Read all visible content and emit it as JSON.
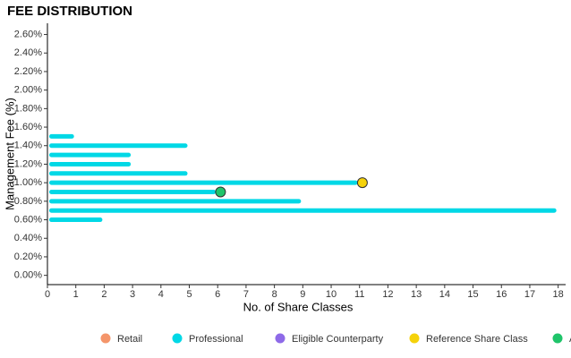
{
  "chart_data": {
    "type": "bar",
    "orientation": "horizontal",
    "title": "FEE DISTRIBUTION",
    "x_label": "No. of Share Classes",
    "y_label": "Management Fee (%)",
    "xlim": [
      0,
      18.2
    ],
    "xticks": [
      0,
      1,
      2,
      3,
      4,
      5,
      6,
      7,
      8,
      9,
      10,
      11,
      12,
      13,
      14,
      15,
      16,
      17,
      18
    ],
    "ylim": [
      -0.1,
      2.7
    ],
    "yticks": [
      {
        "value": 0,
        "label": "0.00%"
      },
      {
        "value": 0.2,
        "label": "0.20%"
      },
      {
        "value": 0.4,
        "label": "0.40%"
      },
      {
        "value": 0.6,
        "label": "0.60%"
      },
      {
        "value": 0.8,
        "label": "0.80%"
      },
      {
        "value": 1.0,
        "label": "1.00%"
      },
      {
        "value": 1.2,
        "label": "1.20%"
      },
      {
        "value": 1.4,
        "label": "1.40%"
      },
      {
        "value": 1.6,
        "label": "1.60%"
      },
      {
        "value": 1.8,
        "label": "1.80%"
      },
      {
        "value": 2.0,
        "label": "2.00%"
      },
      {
        "value": 2.2,
        "label": "2.20%"
      },
      {
        "value": 2.4,
        "label": "2.40%"
      },
      {
        "value": 2.6,
        "label": "2.60%"
      }
    ],
    "grid": false,
    "legend_position": "bottom",
    "series": [
      {
        "name": "Retail",
        "color": "#f4956a",
        "kind": "bar",
        "y": [],
        "values": []
      },
      {
        "name": "Professional",
        "color": "#00d8e6",
        "kind": "bar",
        "y": [
          1.5,
          1.4,
          1.3,
          1.2,
          1.1,
          1.0,
          0.9,
          0.8,
          0.7,
          0.6
        ],
        "values": [
          1,
          5,
          3,
          3,
          5,
          11,
          6,
          9,
          18,
          2
        ]
      },
      {
        "name": "Eligible Counterparty",
        "color": "#8e6ae8",
        "kind": "bar",
        "y": [],
        "values": []
      },
      {
        "name": "Reference Share Class",
        "color": "#f5d20a",
        "kind": "point",
        "x": [
          11.1
        ],
        "values": [
          1.0
        ]
      },
      {
        "name": "Average",
        "color": "#1fc46a",
        "kind": "point",
        "x": [
          6.1
        ],
        "values": [
          0.9
        ]
      }
    ]
  }
}
